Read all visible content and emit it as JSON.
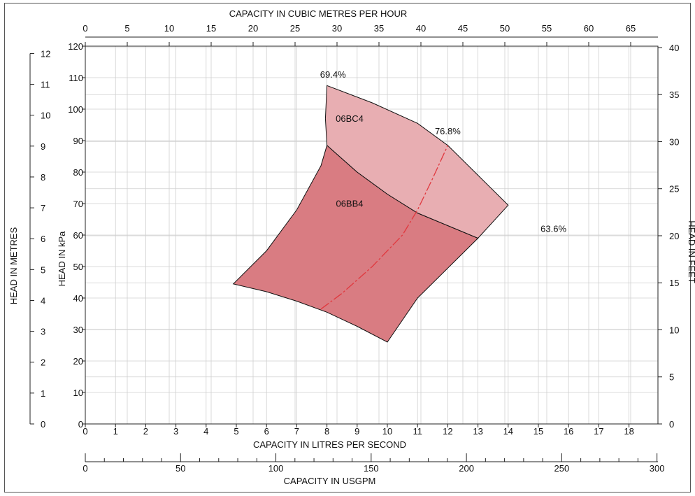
{
  "chart_data": {
    "type": "area",
    "axes": {
      "top": {
        "title": "CAPACITY IN CUBIC METRES PER HOUR",
        "ticks": [
          0,
          5,
          10,
          15,
          20,
          25,
          30,
          35,
          40,
          45,
          50,
          55,
          60,
          65
        ]
      },
      "bottom": {
        "title": "CAPACITY IN LITRES PER SECOND",
        "ticks": [
          0,
          1,
          2,
          3,
          4,
          5,
          6,
          7,
          8,
          9,
          10,
          11,
          12,
          13,
          14,
          15,
          16,
          17,
          18
        ],
        "range": [
          0,
          19
        ]
      },
      "usgpm": {
        "title": "CAPACITY IN USGPM",
        "ticks": [
          0,
          50,
          100,
          150,
          200,
          250,
          300
        ]
      },
      "left_kpa": {
        "title": "HEAD IN kPa",
        "ticks": [
          0,
          10,
          20,
          30,
          40,
          50,
          60,
          70,
          80,
          90,
          100,
          110,
          120
        ]
      },
      "left_metres": {
        "title": "HEAD IN METRES",
        "ticks": [
          0,
          1,
          2,
          3,
          4,
          5,
          6,
          7,
          8,
          9,
          10,
          11,
          12
        ]
      },
      "right_feet": {
        "title": "HEAD IN FEET",
        "ticks": [
          0,
          5,
          10,
          15,
          20,
          25,
          30,
          35,
          40
        ]
      }
    },
    "regions": [
      {
        "name": "06BB4",
        "color": "#d97c82",
        "polygon": [
          [
            4.9,
            44.5
          ],
          [
            6.0,
            55
          ],
          [
            7.0,
            68
          ],
          [
            7.8,
            82
          ],
          [
            8.0,
            88.5
          ],
          [
            9.0,
            80
          ],
          [
            10.0,
            73
          ],
          [
            11.0,
            67
          ],
          [
            12.0,
            63
          ],
          [
            13.0,
            59
          ],
          [
            12.0,
            49.5
          ],
          [
            11.0,
            40
          ],
          [
            10.0,
            26
          ],
          [
            9.0,
            31
          ],
          [
            8.0,
            35.5
          ],
          [
            7.0,
            39
          ],
          [
            6.0,
            42
          ]
        ]
      },
      {
        "name": "06BC4",
        "color": "#e8aeb2",
        "polygon": [
          [
            8.0,
            88.5
          ],
          [
            7.95,
            97
          ],
          [
            8.0,
            107.5
          ],
          [
            9.5,
            102
          ],
          [
            11.0,
            95.5
          ],
          [
            12.0,
            88.5
          ],
          [
            13.0,
            79
          ],
          [
            14.0,
            69.5
          ],
          [
            13.0,
            59
          ],
          [
            12.0,
            63
          ],
          [
            11.0,
            67
          ],
          [
            10.0,
            73
          ],
          [
            9.0,
            80
          ]
        ]
      }
    ],
    "efficiency_curve": {
      "color": "#e0393f",
      "x": [
        7.8,
        8.5,
        9.5,
        10.5,
        11.0,
        11.5,
        12.0
      ],
      "y": [
        36.5,
        41.5,
        50,
        60,
        68,
        78,
        88.5
      ]
    },
    "annotations": [
      {
        "text": "69.4%",
        "x": 8.2,
        "y": 110
      },
      {
        "text": "76.8%",
        "x": 12.0,
        "y": 92
      },
      {
        "text": "63.6%",
        "x": 15.5,
        "y": 61
      }
    ],
    "region_labels": [
      {
        "text": "06BC4",
        "x": 8.75,
        "y": 96
      },
      {
        "text": "06BB4",
        "x": 8.75,
        "y": 69
      }
    ]
  }
}
